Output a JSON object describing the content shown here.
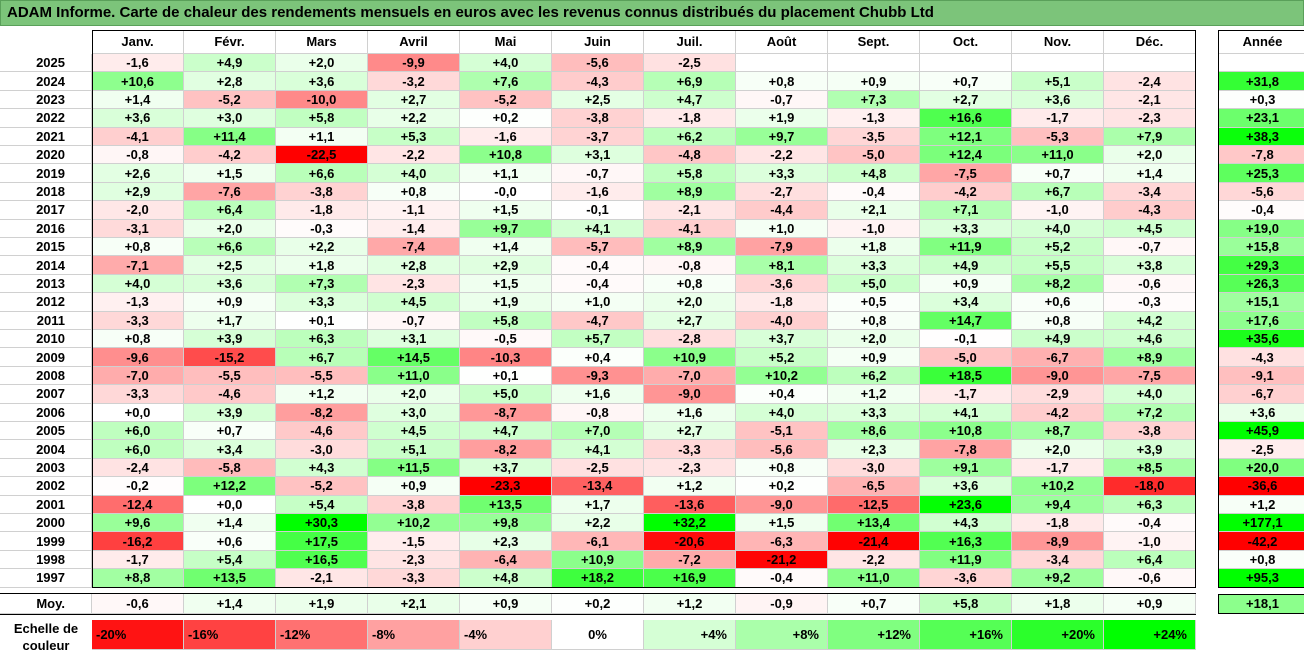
{
  "title": "ADAM Informe. Carte de chaleur des rendements mensuels en euros avec les revenus connus distribués du placement Chubb Ltd",
  "chart_data": {
    "type": "heatmap",
    "columns": [
      "Janv.",
      "Févr.",
      "Mars",
      "Avril",
      "Mai",
      "Juin",
      "Juil.",
      "Août",
      "Sept.",
      "Oct.",
      "Nov.",
      "Déc."
    ],
    "annual_header": "Année",
    "rows": [
      {
        "year": "2025",
        "values": [
          "-1,6",
          "+4,9",
          "+2,0",
          "-9,9",
          "+4,0",
          "-5,6",
          "-2,5",
          "",
          "",
          "",
          "",
          ""
        ],
        "annual": ""
      },
      {
        "year": "2024",
        "values": [
          "+10,6",
          "+2,8",
          "+3,6",
          "-3,2",
          "+7,6",
          "-4,3",
          "+6,9",
          "+0,8",
          "+0,9",
          "+0,7",
          "+5,1",
          "-2,4"
        ],
        "annual": "+31,8"
      },
      {
        "year": "2023",
        "values": [
          "+1,4",
          "-5,2",
          "-10,0",
          "+2,7",
          "-5,2",
          "+2,5",
          "+4,7",
          "-0,7",
          "+7,3",
          "+2,7",
          "+3,6",
          "-2,1"
        ],
        "annual": "+0,3"
      },
      {
        "year": "2022",
        "values": [
          "+3,6",
          "+3,0",
          "+5,8",
          "+2,2",
          "+0,2",
          "-3,8",
          "-1,8",
          "+1,9",
          "-1,3",
          "+16,6",
          "-1,7",
          "-2,3"
        ],
        "annual": "+23,1"
      },
      {
        "year": "2021",
        "values": [
          "-4,1",
          "+11,4",
          "+1,1",
          "+5,3",
          "-1,6",
          "-3,7",
          "+6,2",
          "+9,7",
          "-3,5",
          "+12,1",
          "-5,3",
          "+7,9"
        ],
        "annual": "+38,3"
      },
      {
        "year": "2020",
        "values": [
          "-0,8",
          "-4,2",
          "-22,5",
          "-2,2",
          "+10,8",
          "+3,1",
          "-4,8",
          "-2,2",
          "-5,0",
          "+12,4",
          "+11,0",
          "+2,0"
        ],
        "annual": "-7,8"
      },
      {
        "year": "2019",
        "values": [
          "+2,6",
          "+1,5",
          "+6,6",
          "+4,0",
          "+1,1",
          "-0,7",
          "+5,8",
          "+3,3",
          "+4,8",
          "-7,5",
          "+0,7",
          "+1,4"
        ],
        "annual": "+25,3"
      },
      {
        "year": "2018",
        "values": [
          "+2,9",
          "-7,6",
          "-3,8",
          "+0,8",
          "-0,0",
          "-1,6",
          "+8,9",
          "-2,7",
          "-0,4",
          "-4,2",
          "+6,7",
          "-3,4"
        ],
        "annual": "-5,6"
      },
      {
        "year": "2017",
        "values": [
          "-2,0",
          "+6,4",
          "-1,8",
          "-1,1",
          "+1,5",
          "-0,1",
          "-2,1",
          "-4,4",
          "+2,1",
          "+7,1",
          "-1,0",
          "-4,3"
        ],
        "annual": "-0,4"
      },
      {
        "year": "2016",
        "values": [
          "-3,1",
          "+2,0",
          "-0,3",
          "-1,4",
          "+9,7",
          "+4,1",
          "-4,1",
          "+1,0",
          "-1,0",
          "+3,3",
          "+4,0",
          "+4,5"
        ],
        "annual": "+19,0"
      },
      {
        "year": "2015",
        "values": [
          "+0,8",
          "+6,6",
          "+2,2",
          "-7,4",
          "+1,4",
          "-5,7",
          "+8,9",
          "-7,9",
          "+1,8",
          "+11,9",
          "+5,2",
          "-0,7"
        ],
        "annual": "+15,8"
      },
      {
        "year": "2014",
        "values": [
          "-7,1",
          "+2,5",
          "+1,8",
          "+2,8",
          "+2,9",
          "-0,4",
          "-0,8",
          "+8,1",
          "+3,3",
          "+4,9",
          "+5,5",
          "+3,8"
        ],
        "annual": "+29,3"
      },
      {
        "year": "2013",
        "values": [
          "+4,0",
          "+3,6",
          "+7,3",
          "-2,3",
          "+1,5",
          "-0,4",
          "+0,8",
          "-3,6",
          "+5,0",
          "+0,9",
          "+8,2",
          "-0,6"
        ],
        "annual": "+26,3"
      },
      {
        "year": "2012",
        "values": [
          "-1,3",
          "+0,9",
          "+3,3",
          "+4,5",
          "+1,9",
          "+1,0",
          "+2,0",
          "-1,8",
          "+0,5",
          "+3,4",
          "+0,6",
          "-0,3"
        ],
        "annual": "+15,1"
      },
      {
        "year": "2011",
        "values": [
          "-3,3",
          "+1,7",
          "+0,1",
          "-0,7",
          "+5,8",
          "-4,7",
          "+2,7",
          "-4,0",
          "+0,8",
          "+14,7",
          "+0,8",
          "+4,2"
        ],
        "annual": "+17,6"
      },
      {
        "year": "2010",
        "values": [
          "+0,8",
          "+3,9",
          "+6,3",
          "+3,1",
          "-0,5",
          "+5,7",
          "-2,8",
          "+3,7",
          "+2,0",
          "-0,1",
          "+4,9",
          "+4,6"
        ],
        "annual": "+35,6"
      },
      {
        "year": "2009",
        "values": [
          "-9,6",
          "-15,2",
          "+6,7",
          "+14,5",
          "-10,3",
          "+0,4",
          "+10,9",
          "+5,2",
          "+0,9",
          "-5,0",
          "-6,7",
          "+8,9"
        ],
        "annual": "-4,3"
      },
      {
        "year": "2008",
        "values": [
          "-7,0",
          "-5,5",
          "-5,5",
          "+11,0",
          "+0,1",
          "-9,3",
          "-7,0",
          "+10,2",
          "+6,2",
          "+18,5",
          "-9,0",
          "-7,5"
        ],
        "annual": "-9,1"
      },
      {
        "year": "2007",
        "values": [
          "-3,3",
          "-4,6",
          "+1,2",
          "+2,0",
          "+5,0",
          "+1,6",
          "-9,0",
          "+0,4",
          "+1,2",
          "-1,7",
          "-2,9",
          "+4,0"
        ],
        "annual": "-6,7"
      },
      {
        "year": "2006",
        "values": [
          "+0,0",
          "+3,9",
          "-8,2",
          "+3,0",
          "-8,7",
          "-0,8",
          "+1,6",
          "+4,0",
          "+3,3",
          "+4,1",
          "-4,2",
          "+7,2"
        ],
        "annual": "+3,6"
      },
      {
        "year": "2005",
        "values": [
          "+6,0",
          "+0,7",
          "-4,6",
          "+4,5",
          "+4,7",
          "+7,0",
          "+2,7",
          "-5,1",
          "+8,6",
          "+10,8",
          "+8,7",
          "-3,8"
        ],
        "annual": "+45,9"
      },
      {
        "year": "2004",
        "values": [
          "+6,0",
          "+3,4",
          "-3,0",
          "+5,1",
          "-8,2",
          "+4,1",
          "-3,3",
          "-5,6",
          "+2,3",
          "-7,8",
          "+2,0",
          "+3,9"
        ],
        "annual": "-2,5"
      },
      {
        "year": "2003",
        "values": [
          "-2,4",
          "-5,8",
          "+4,3",
          "+11,5",
          "+3,7",
          "-2,5",
          "-2,3",
          "+0,8",
          "-3,0",
          "+9,1",
          "-1,7",
          "+8,5"
        ],
        "annual": "+20,0"
      },
      {
        "year": "2002",
        "values": [
          "-0,2",
          "+12,2",
          "-5,2",
          "+0,9",
          "-23,3",
          "-13,4",
          "+1,2",
          "+0,2",
          "-6,5",
          "+3,6",
          "+10,2",
          "-18,0"
        ],
        "annual": "-36,6"
      },
      {
        "year": "2001",
        "values": [
          "-12,4",
          "+0,0",
          "+5,4",
          "-3,8",
          "+13,5",
          "+1,7",
          "-13,6",
          "-9,0",
          "-12,5",
          "+23,6",
          "+9,4",
          "+6,3"
        ],
        "annual": "+1,2"
      },
      {
        "year": "2000",
        "values": [
          "+9,6",
          "+1,4",
          "+30,3",
          "+10,2",
          "+9,8",
          "+2,2",
          "+32,2",
          "+1,5",
          "+13,4",
          "+4,3",
          "-1,8",
          "-0,4"
        ],
        "annual": "+177,1"
      },
      {
        "year": "1999",
        "values": [
          "-16,2",
          "+0,6",
          "+17,5",
          "-1,5",
          "+2,3",
          "-6,1",
          "-20,6",
          "-6,3",
          "-21,4",
          "+16,3",
          "-8,9",
          "-1,0"
        ],
        "annual": "-42,2"
      },
      {
        "year": "1998",
        "values": [
          "-1,7",
          "+5,4",
          "+16,5",
          "-2,3",
          "-6,4",
          "+10,9",
          "-7,2",
          "-21,2",
          "-2,2",
          "+11,9",
          "-3,4",
          "+6,4"
        ],
        "annual": "+0,8"
      },
      {
        "year": "1997",
        "values": [
          "+8,8",
          "+13,5",
          "-2,1",
          "-3,3",
          "+4,8",
          "+18,2",
          "+16,9",
          "-0,4",
          "+11,0",
          "-3,6",
          "+9,2",
          "-0,6"
        ],
        "annual": "+95,3"
      }
    ],
    "average": {
      "label": "Moy.",
      "values": [
        "-0,6",
        "+1,4",
        "+1,9",
        "+2,1",
        "+0,9",
        "+0,2",
        "+1,2",
        "-0,9",
        "+0,7",
        "+5,8",
        "+1,8",
        "+0,9"
      ],
      "annual": "+18,1"
    },
    "scale": {
      "label_line1": "Echelle de",
      "label_line2": "couleur",
      "steps": [
        "-20%",
        "-16%",
        "-12%",
        "-8%",
        "-4%",
        "0%",
        "+4%",
        "+8%",
        "+12%",
        "+16%",
        "+20%",
        "+24%"
      ],
      "step_values": [
        -20,
        -16,
        -12,
        -8,
        -4,
        0,
        4,
        8,
        12,
        16,
        20,
        24
      ]
    },
    "colors": {
      "negative_max": "#ff0000",
      "neutral": "#ffffff",
      "positive_max": "#00ff00",
      "title_bg": "#7cc47a"
    }
  }
}
